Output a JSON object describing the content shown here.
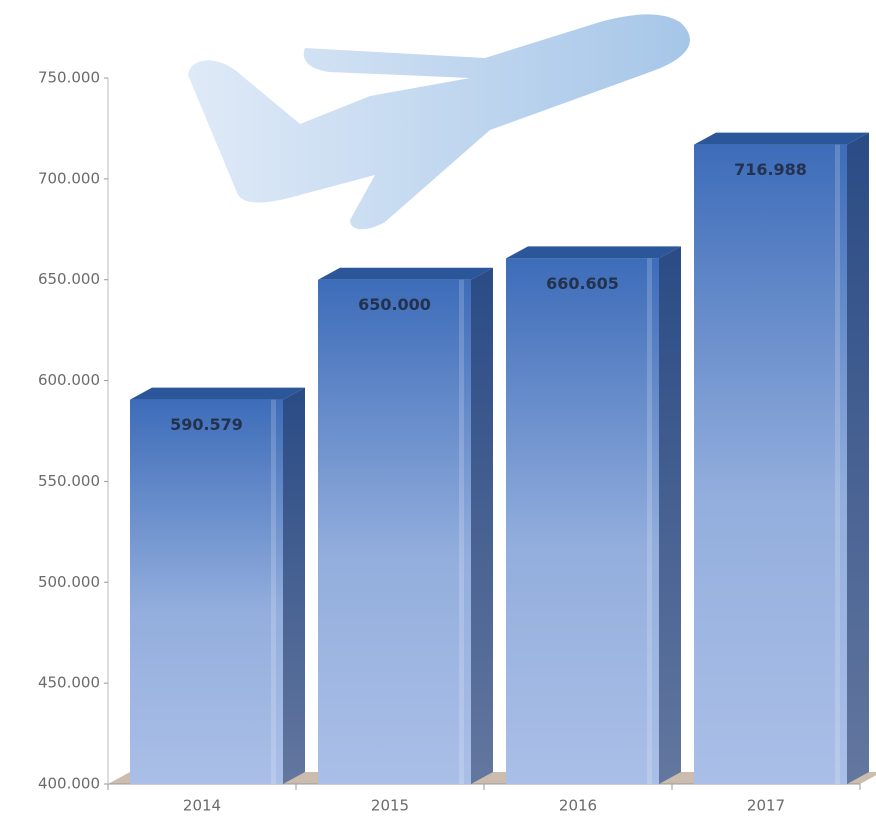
{
  "chart_data": {
    "type": "bar3d",
    "categories": [
      "2014",
      "2015",
      "2016",
      "2017"
    ],
    "values": [
      590579,
      650000,
      660605,
      716988
    ],
    "value_labels": [
      "590.579",
      "650.000",
      "660.605",
      "716.988"
    ],
    "color": "#3d6cb9",
    "ylim": [
      400000,
      750000
    ],
    "yticks": [
      {
        "value": 400000,
        "label": "400.000"
      },
      {
        "value": 450000,
        "label": "450.000"
      },
      {
        "value": 500000,
        "label": "500.000"
      },
      {
        "value": 550000,
        "label": "550.000"
      },
      {
        "value": 600000,
        "label": "600.000"
      },
      {
        "value": 650000,
        "label": "650.000"
      },
      {
        "value": 700000,
        "label": "700.000"
      },
      {
        "value": 750000,
        "label": "750.000"
      }
    ]
  }
}
